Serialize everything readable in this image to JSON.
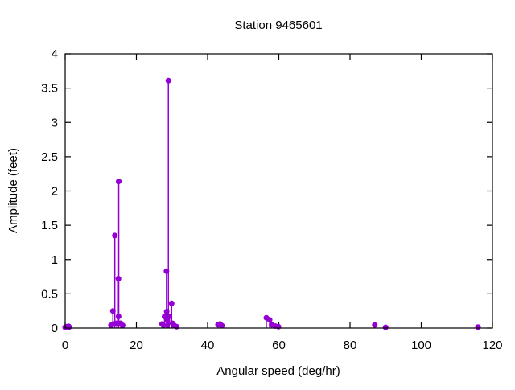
{
  "chart_data": {
    "type": "stem",
    "title": "Station 9465601",
    "xlabel": "Angular speed (deg/hr)",
    "ylabel": "Amplitude (feet)",
    "xlim": [
      0,
      120
    ],
    "ylim": [
      0,
      4
    ],
    "grid": false,
    "legend": "none",
    "box_border": true,
    "mirrored_ticks": true,
    "style": {
      "color": "#9400d3",
      "marker": "filled-circle",
      "marker_radius": 3.5,
      "stem_width": 1.5
    },
    "xticks": [
      {
        "v": 0,
        "label": "0"
      },
      {
        "v": 20,
        "label": "20"
      },
      {
        "v": 40,
        "label": "40"
      },
      {
        "v": 60,
        "label": "60"
      },
      {
        "v": 80,
        "label": "80"
      },
      {
        "v": 100,
        "label": "100"
      },
      {
        "v": 120,
        "label": "120"
      }
    ],
    "yticks": [
      {
        "v": 0,
        "label": "0"
      },
      {
        "v": 0.5,
        "label": "0.5"
      },
      {
        "v": 1,
        "label": "1"
      },
      {
        "v": 1.5,
        "label": "1.5"
      },
      {
        "v": 2,
        "label": "2"
      },
      {
        "v": 2.5,
        "label": "2.5"
      },
      {
        "v": 3,
        "label": "3"
      },
      {
        "v": 3.5,
        "label": "3.5"
      },
      {
        "v": 4,
        "label": "4"
      }
    ],
    "points": [
      [
        0.0,
        0.01
      ],
      [
        0.5,
        0.02
      ],
      [
        1.0,
        0.025
      ],
      [
        1.1,
        0.015
      ],
      [
        12.85,
        0.04
      ],
      [
        13.4,
        0.25
      ],
      [
        13.47,
        0.06
      ],
      [
        13.94,
        1.35
      ],
      [
        14.49,
        0.07
      ],
      [
        14.96,
        0.72
      ],
      [
        15.0,
        0.17
      ],
      [
        15.04,
        2.14
      ],
      [
        15.59,
        0.07
      ],
      [
        16.14,
        0.04
      ],
      [
        27.2,
        0.06
      ],
      [
        27.6,
        0.04
      ],
      [
        27.9,
        0.17
      ],
      [
        28.44,
        0.83
      ],
      [
        28.51,
        0.24
      ],
      [
        28.7,
        0.11
      ],
      [
        28.98,
        3.61
      ],
      [
        29.2,
        0.17
      ],
      [
        29.9,
        0.36
      ],
      [
        30.1,
        0.07
      ],
      [
        30.6,
        0.04
      ],
      [
        31.3,
        0.02
      ],
      [
        42.93,
        0.05
      ],
      [
        43.48,
        0.06
      ],
      [
        44.03,
        0.035
      ],
      [
        56.5,
        0.15
      ],
      [
        57.42,
        0.12
      ],
      [
        58.0,
        0.05
      ],
      [
        58.98,
        0.03
      ],
      [
        59.9,
        0.02
      ],
      [
        86.95,
        0.045
      ],
      [
        90.0,
        0.01
      ],
      [
        115.94,
        0.015
      ]
    ]
  }
}
